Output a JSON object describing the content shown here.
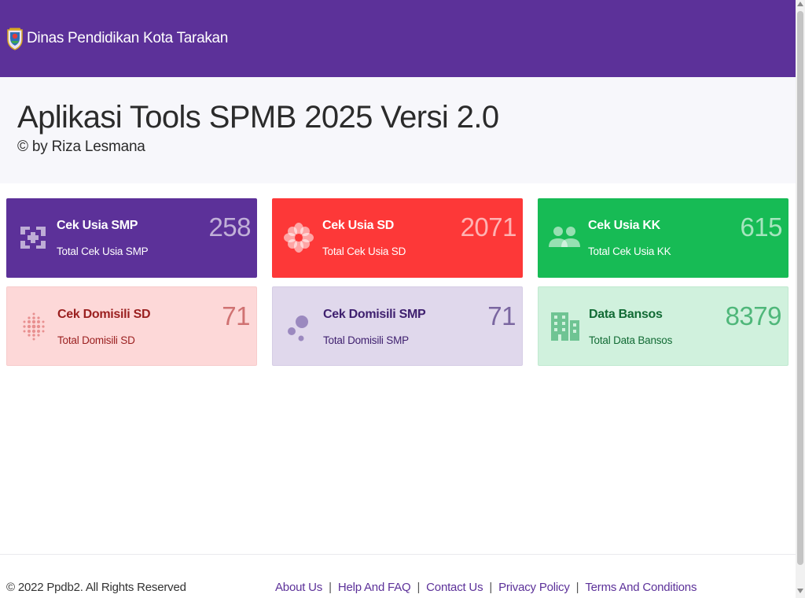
{
  "navbar": {
    "brand_text": "Dinas Pendidikan Kota Tarakan",
    "logo_icon": "kota-tarakan-emblem-icon",
    "background": "#5c3199"
  },
  "hero": {
    "title": "Aplikasi Tools SPMB 2025 Versi 2.0",
    "subtitle": "© by Riza Lesmana"
  },
  "cards": [
    {
      "title": "Cek Usia SMP",
      "subtitle": "Total Cek Usia SMP",
      "count": "258",
      "icon": "hospital-cross-icon",
      "color": "#5c3199"
    },
    {
      "title": "Cek Usia SD",
      "subtitle": "Total Cek Usia SD",
      "count": "2071",
      "icon": "flower-icon",
      "color": "#fd3838"
    },
    {
      "title": "Cek Usia KK",
      "subtitle": "Total Cek Usia KK",
      "count": "615",
      "icon": "users-icon",
      "color": "#17bb55"
    },
    {
      "title": "Cek Domisili SD",
      "subtitle": "Total Domisili SD",
      "count": "71",
      "icon": "dots-grid-icon",
      "color": "#fdd8d8"
    },
    {
      "title": "Cek Domisili SMP",
      "subtitle": "Total Domisili SMP",
      "count": "71",
      "icon": "bubbles-icon",
      "color": "#e0d8ec"
    },
    {
      "title": "Data Bansos",
      "subtitle": "Total Data Bansos",
      "count": "8379",
      "icon": "building-icon",
      "color": "#d0f1dd"
    }
  ],
  "footer": {
    "copyright": "© 2022 Ppdb2. All Rights Reserved",
    "links": [
      "About Us",
      "Help And FAQ",
      "Contact Us",
      "Privacy Policy",
      "Terms And Conditions"
    ],
    "separator": "|"
  }
}
